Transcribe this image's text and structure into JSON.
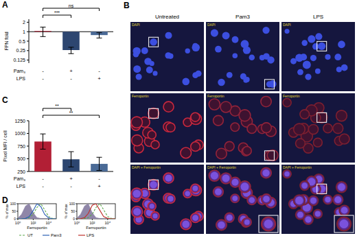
{
  "chart_data": [
    {
      "type": "bar",
      "title": "A",
      "y_label": "FPN fold",
      "categories": [
        null,
        null,
        null
      ],
      "values": [
        1.05,
        0.26,
        0.78
      ],
      "errors": [
        0.35,
        0.06,
        0.15
      ],
      "colors": [
        "#b21f35",
        "#2d4670",
        "#4a6a96"
      ],
      "log": "y",
      "ylim": [
        0.1,
        2.5
      ],
      "yticks": [
        0.125,
        0.25,
        0.5,
        1,
        2
      ],
      "treatments": [
        {
          "label": "Pam₃",
          "signs": [
            "-",
            "+",
            "-"
          ]
        },
        {
          "label": "LPS",
          "signs": [
            "-",
            "-",
            "+"
          ]
        }
      ],
      "annotations": [
        {
          "text": "ns",
          "between": [
            0,
            2
          ]
        },
        {
          "text": "***",
          "between": [
            0,
            1
          ]
        }
      ]
    },
    {
      "type": "bar",
      "title": "C",
      "y_label": "Pixel MFI / cell",
      "categories": [
        null,
        null,
        null
      ],
      "values": [
        840,
        490,
        400
      ],
      "errors": [
        150,
        150,
        130
      ],
      "colors": [
        "#b21f35",
        "#2d4670",
        "#4a6a96"
      ],
      "ylim": [
        250,
        1250
      ],
      "yticks": [
        250,
        500,
        750,
        1000,
        1250
      ],
      "treatments": [
        {
          "label": "Pam₃",
          "signs": [
            "-",
            "+",
            "-"
          ]
        },
        {
          "label": "LPS",
          "signs": [
            "-",
            "-",
            "+"
          ]
        }
      ],
      "annotations": [
        {
          "text": "**",
          "between": [
            0,
            1
          ]
        },
        {
          "text": "**",
          "between": [
            0,
            2
          ]
        }
      ]
    },
    {
      "type": "line",
      "title": "D",
      "y_label": "% of max",
      "x_label": "Ferroportin",
      "log": "x",
      "x": [
        1,
        3,
        10,
        30,
        100,
        300,
        1000,
        3000,
        10000,
        30000,
        100000
      ],
      "xlim": [
        1,
        100000
      ],
      "xticks": [
        {
          "value": 1,
          "label": "10⁰"
        },
        {
          "value": 100,
          "label": "10²"
        },
        {
          "value": 10000,
          "label": "10⁴"
        }
      ],
      "ylim": [
        0,
        100
      ],
      "yticks": [
        0,
        50,
        100
      ],
      "legend": "bottom",
      "series": [
        {
          "type": "area",
          "color": "#8f86a8",
          "values": [
            5,
            30,
            85,
            100,
            40,
            8,
            2,
            0,
            0,
            0,
            0
          ]
        },
        {
          "name": "UT",
          "color": "#5aa84a",
          "line_style": "dashed",
          "values": [
            0,
            0,
            2,
            8,
            30,
            75,
            100,
            60,
            15,
            3,
            0
          ]
        },
        {
          "name": "Pam3",
          "color": "#2b5fb4",
          "values": [
            0,
            0,
            3,
            15,
            55,
            100,
            80,
            30,
            6,
            1,
            0
          ]
        }
      ]
    },
    {
      "type": "line",
      "y_label": "% of max",
      "x_label": "Ferroportin",
      "log": "x",
      "x": [
        1,
        3,
        10,
        30,
        100,
        300,
        1000,
        3000,
        10000,
        30000,
        100000
      ],
      "xlim": [
        1,
        100000
      ],
      "xticks": [
        {
          "value": 1,
          "label": "10⁰"
        },
        {
          "value": 100,
          "label": "10²"
        },
        {
          "value": 10000,
          "label": "10⁴"
        }
      ],
      "ylim": [
        0,
        100
      ],
      "yticks": [
        0,
        50,
        100
      ],
      "legend": "bottom",
      "series": [
        {
          "type": "area",
          "color": "#8f86a8",
          "values": [
            5,
            30,
            85,
            100,
            40,
            8,
            2,
            0,
            0,
            0,
            0
          ]
        },
        {
          "name": "UT",
          "color": "#5aa84a",
          "line_style": "dashed",
          "values": [
            0,
            0,
            2,
            8,
            30,
            75,
            100,
            60,
            15,
            3,
            0
          ]
        },
        {
          "name": "LPS",
          "color": "#c0302a",
          "values": [
            0,
            1,
            8,
            35,
            90,
            100,
            55,
            15,
            3,
            0,
            0
          ]
        }
      ]
    }
  ],
  "micrographs": {
    "title": "B",
    "columns": [
      "Untreated",
      "Pam3",
      "LPS"
    ],
    "rows": [
      "DAPI",
      "Ferroportin",
      "DAPI + Ferroportin"
    ]
  }
}
